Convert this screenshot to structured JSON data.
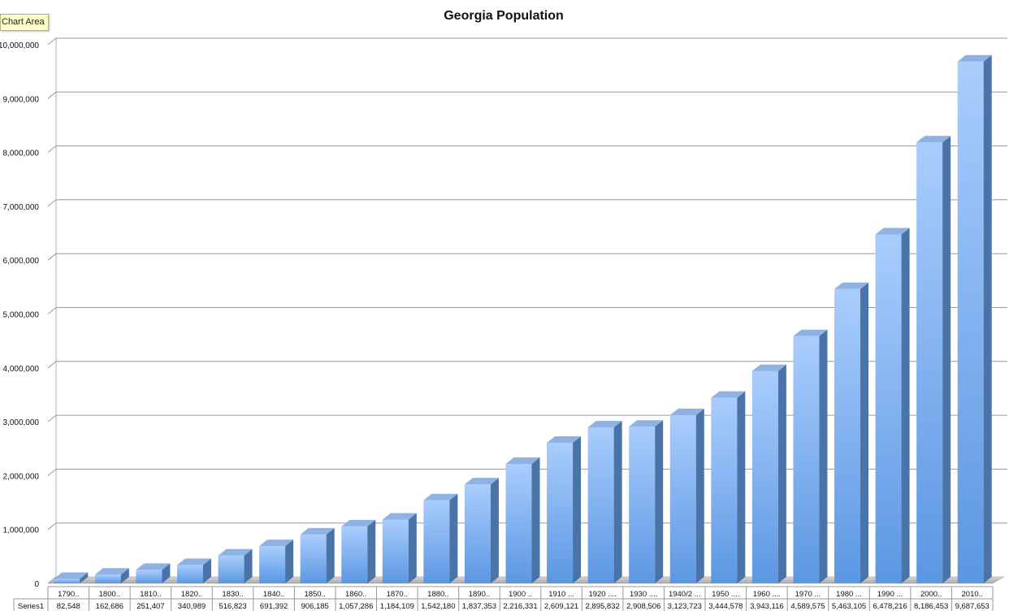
{
  "tooltip": "Chart Area",
  "chart_data": {
    "type": "bar",
    "title": "Georgia Population",
    "xlabel": "",
    "ylabel": "",
    "ylim": [
      0,
      10000000
    ],
    "ytick_labels": [
      "0",
      "1,000,000",
      "2,000,000",
      "3,000,000",
      "4,000,000",
      "5,000,000",
      "6,000,000",
      "7,000,000",
      "8,000,000",
      "9,000,000",
      "10,000,000"
    ],
    "yticks": [
      0,
      1000000,
      2000000,
      3000000,
      4000000,
      5000000,
      6000000,
      7000000,
      8000000,
      9000000,
      10000000
    ],
    "grid": true,
    "legend": "none",
    "data_table": true,
    "categories": [
      "1790..",
      "1800..",
      "1810..",
      "1820..",
      "1830..",
      "1840..",
      "1850..",
      "1860..",
      "1870..",
      "1880..",
      "1890..",
      "1900 ..",
      "1910 ...",
      "1920 ....",
      "1930 ....",
      "1940/2 ...",
      "1950 ....",
      "1960 ....",
      "1970 ...",
      "1980 ...",
      "1990 ...",
      "2000..",
      "2010.."
    ],
    "series": [
      {
        "name": "Series1",
        "values": [
          82548,
          162686,
          251407,
          340989,
          516823,
          691392,
          906185,
          1057286,
          1184109,
          1542180,
          1837353,
          2216331,
          2609121,
          2895832,
          2908506,
          3123723,
          3444578,
          3943116,
          4589575,
          5463105,
          6478216,
          8186453,
          9687653
        ],
        "labels": [
          "82,548",
          "162,686",
          "251,407",
          "340,989",
          "516,823",
          "691,392",
          "906,185",
          "1,057,286",
          "1,184,109",
          "1,542,180",
          "1,837,353",
          "2,216,331",
          "2,609,121",
          "2,895,832",
          "2,908,506",
          "3,123,723",
          "3,444,578",
          "3,943,116",
          "4,589,575",
          "5,463,105",
          "6,478,216",
          "8,186,453",
          "9,687,653"
        ]
      }
    ],
    "colors": {
      "bar_light": "#a9cdfd",
      "bar_dark": "#5b97e2",
      "bar_side": "#4a73a8",
      "bar_top": "#8fb2e2",
      "gridline": "#9a9a9a",
      "floor": "#b8b8b8"
    }
  }
}
